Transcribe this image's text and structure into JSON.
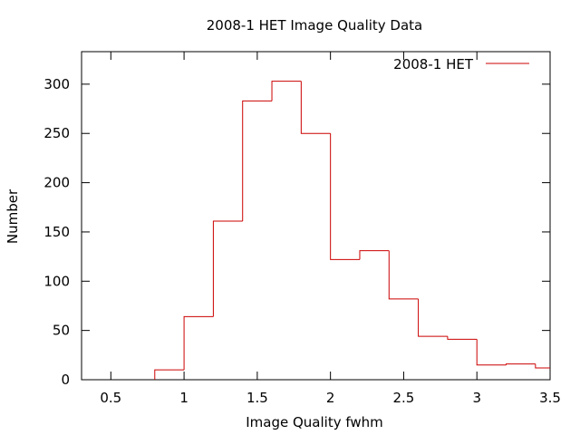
{
  "chart_data": {
    "type": "histogram",
    "title": "2008-1 HET Image Quality Data",
    "xlabel": "Image Quality fwhm",
    "ylabel": "Number",
    "xlim": [
      0.3,
      3.5
    ],
    "ylim": [
      0,
      333
    ],
    "xticks": [
      "0.5",
      "1",
      "1.5",
      "2",
      "2.5",
      "3",
      "3.5"
    ],
    "yticks": [
      "0",
      "50",
      "100",
      "150",
      "200",
      "250",
      "300"
    ],
    "legend_position": "top-right",
    "grid": false,
    "series": [
      {
        "name": "2008-1 HET",
        "color": "#cc0000",
        "bin_width": 0.2,
        "bins": [
          0.8,
          1.0,
          1.2,
          1.4,
          1.6,
          1.8,
          2.0,
          2.2,
          2.4,
          2.6,
          2.8,
          3.0,
          3.2,
          3.4
        ],
        "values": [
          10,
          64,
          161,
          283,
          303,
          250,
          122,
          131,
          82,
          44,
          41,
          15,
          16,
          12
        ]
      }
    ]
  }
}
